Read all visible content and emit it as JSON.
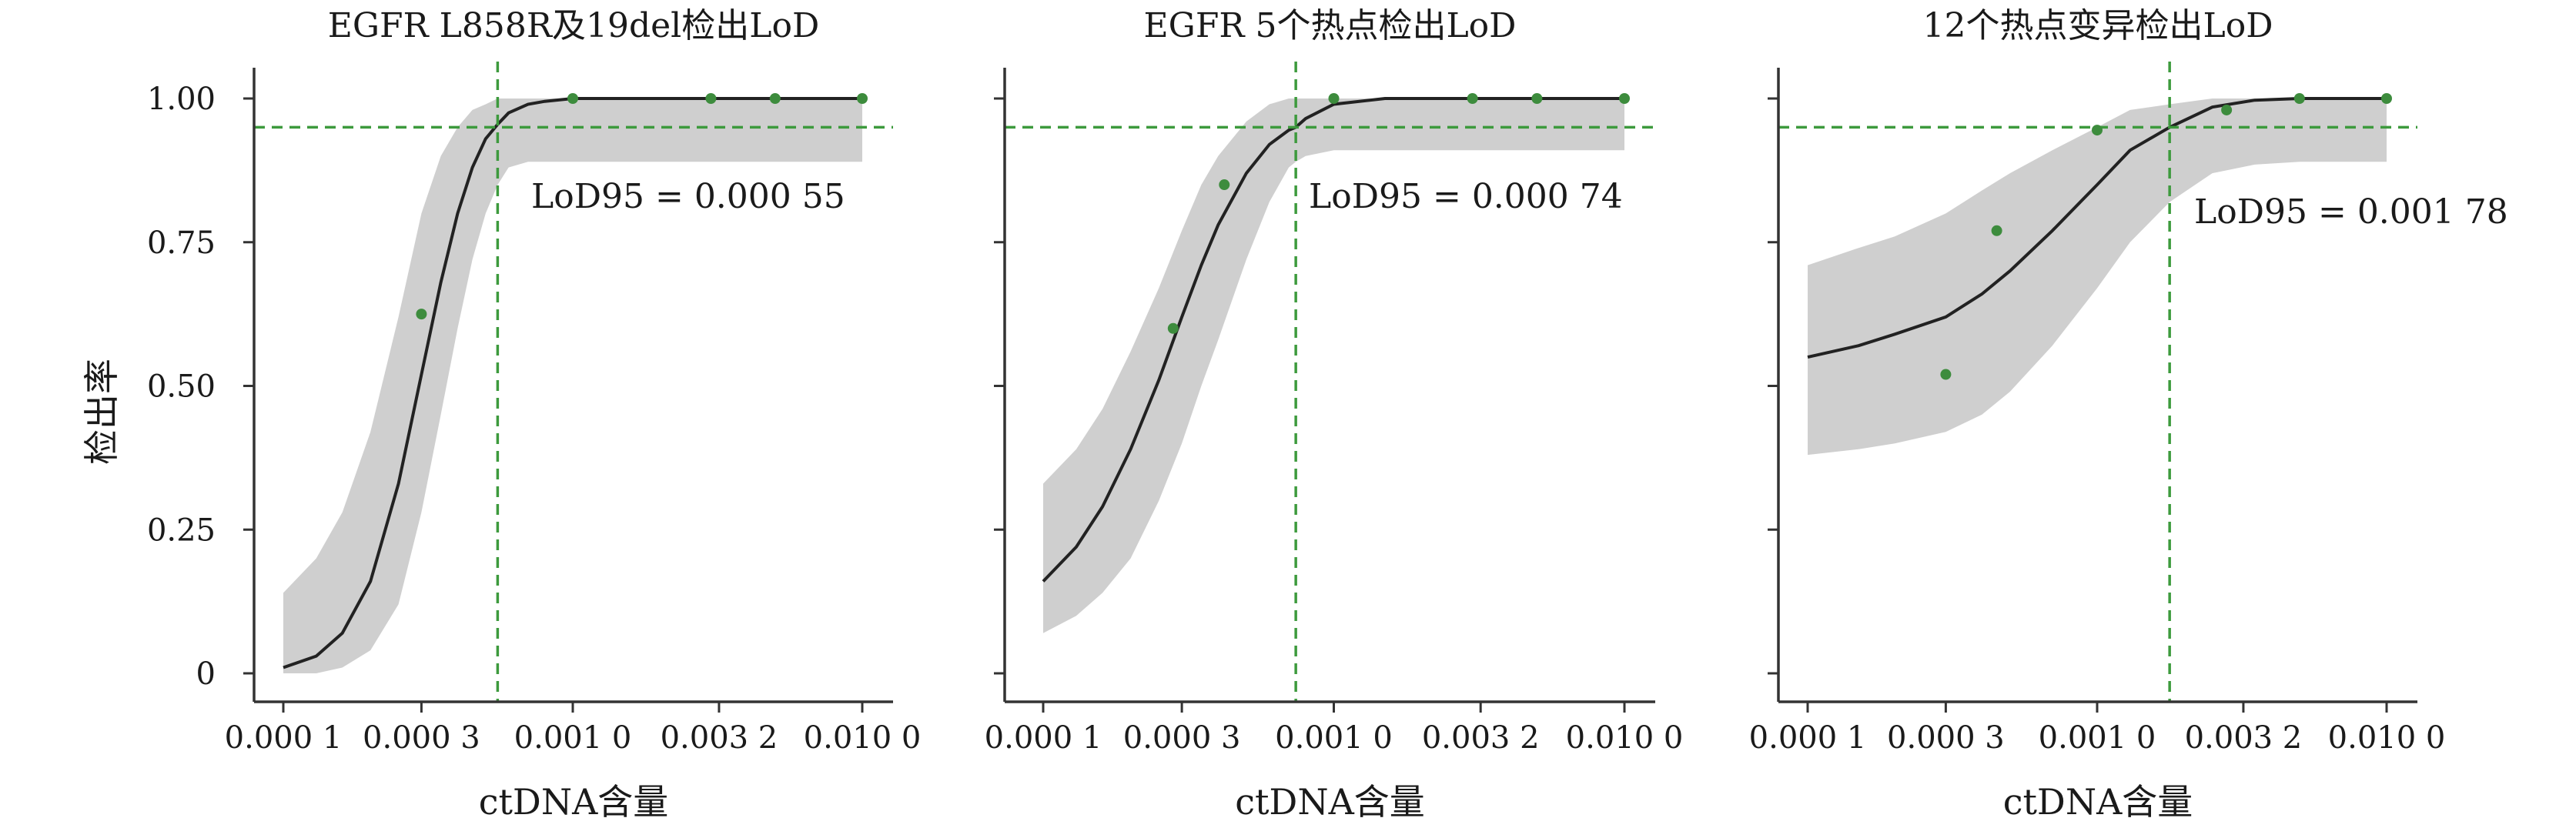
{
  "shared": {
    "ylabel": "检出率",
    "xlabel": "ctDNA含量",
    "x_ticks": [
      {
        "value": 0.0001,
        "label": "0.000 1"
      },
      {
        "value": 0.0003,
        "label": "0.000 3"
      },
      {
        "value": 0.001,
        "label": "0.001 0"
      },
      {
        "value": 0.0032,
        "label": "0.003 2"
      },
      {
        "value": 0.01,
        "label": "0.010 0"
      }
    ],
    "y_ticks": [
      {
        "value": 0,
        "label": "0"
      },
      {
        "value": 0.25,
        "label": "0.25"
      },
      {
        "value": 0.5,
        "label": "0.50"
      },
      {
        "value": 0.75,
        "label": "0.75"
      },
      {
        "value": 1.0,
        "label": "1.00"
      }
    ],
    "colors": {
      "point": "#3d8c3d",
      "reference": "#3d9a3d",
      "curve": "#222222",
      "band": "#cfcfcf",
      "axis": "#333333"
    }
  },
  "chart_data": [
    {
      "type": "line",
      "title": "EGFR L858R及19del检出LoD",
      "xlabel": "ctDNA含量",
      "ylabel": "检出率",
      "x_scale": "log",
      "xlim": [
        0.0001,
        0.01
      ],
      "ylim": [
        0,
        1.0
      ],
      "annotation": "LoD95 = 0.000 55",
      "lod95": 0.00055,
      "reference_y": 0.95,
      "points": {
        "x": [
          0.0003,
          0.001,
          0.003,
          0.005,
          0.01
        ],
        "y": [
          0.625,
          1.0,
          1.0,
          1.0,
          1.0
        ]
      },
      "fit": {
        "x": [
          0.0001,
          0.00013,
          0.00016,
          0.0002,
          0.00025,
          0.0003,
          0.00035,
          0.0004,
          0.00045,
          0.0005,
          0.00055,
          0.0006,
          0.0007,
          0.0008,
          0.001,
          0.002,
          0.005,
          0.01
        ],
        "y": [
          0.01,
          0.03,
          0.07,
          0.16,
          0.33,
          0.52,
          0.68,
          0.8,
          0.88,
          0.93,
          0.955,
          0.975,
          0.99,
          0.995,
          1.0,
          1.0,
          1.0,
          1.0
        ],
        "lower": [
          0.0,
          0.0,
          0.01,
          0.04,
          0.12,
          0.28,
          0.45,
          0.6,
          0.72,
          0.8,
          0.85,
          0.88,
          0.89,
          0.89,
          0.89,
          0.89,
          0.89,
          0.89
        ],
        "upper": [
          0.14,
          0.2,
          0.28,
          0.42,
          0.62,
          0.8,
          0.9,
          0.95,
          0.98,
          0.99,
          1.0,
          1.0,
          1.0,
          1.0,
          1.0,
          1.0,
          1.0,
          1.0
        ]
      }
    },
    {
      "type": "line",
      "title": "EGFR 5个热点检出LoD",
      "xlabel": "ctDNA含量",
      "ylabel": "检出率",
      "x_scale": "log",
      "xlim": [
        0.0001,
        0.01
      ],
      "ylim": [
        0,
        1.0
      ],
      "annotation": "LoD95 = 0.000 74",
      "lod95": 0.00074,
      "reference_y": 0.95,
      "points": {
        "x": [
          0.00028,
          0.00042,
          0.001,
          0.003,
          0.005,
          0.01
        ],
        "y": [
          0.6,
          0.85,
          1.0,
          1.0,
          1.0,
          1.0
        ]
      },
      "fit": {
        "x": [
          0.0001,
          0.00013,
          0.00016,
          0.0002,
          0.00025,
          0.0003,
          0.00035,
          0.0004,
          0.0005,
          0.0006,
          0.0007,
          0.00074,
          0.0008,
          0.001,
          0.0015,
          0.002,
          0.005,
          0.01
        ],
        "y": [
          0.16,
          0.22,
          0.29,
          0.39,
          0.51,
          0.62,
          0.71,
          0.78,
          0.87,
          0.92,
          0.945,
          0.95,
          0.965,
          0.99,
          1.0,
          1.0,
          1.0,
          1.0
        ],
        "lower": [
          0.07,
          0.1,
          0.14,
          0.2,
          0.3,
          0.4,
          0.5,
          0.58,
          0.72,
          0.82,
          0.88,
          0.89,
          0.9,
          0.91,
          0.91,
          0.91,
          0.91,
          0.91
        ],
        "upper": [
          0.33,
          0.39,
          0.46,
          0.56,
          0.67,
          0.77,
          0.85,
          0.9,
          0.96,
          0.99,
          1.0,
          1.0,
          1.0,
          1.0,
          1.0,
          1.0,
          1.0,
          1.0
        ]
      }
    },
    {
      "type": "line",
      "title": "12个热点变异检出LoD",
      "xlabel": "ctDNA含量",
      "ylabel": "检出率",
      "x_scale": "log",
      "xlim": [
        0.0001,
        0.01
      ],
      "ylim": [
        0,
        1.0
      ],
      "annotation": "LoD95 = 0.001 78",
      "lod95": 0.00178,
      "reference_y": 0.95,
      "points": {
        "x": [
          0.0003,
          0.00045,
          0.001,
          0.0028,
          0.005,
          0.01
        ],
        "y": [
          0.52,
          0.77,
          0.945,
          0.98,
          1.0,
          1.0
        ]
      },
      "fit": {
        "x": [
          0.0001,
          0.00015,
          0.0002,
          0.0003,
          0.0004,
          0.0005,
          0.0007,
          0.001,
          0.0013,
          0.00178,
          0.0025,
          0.0035,
          0.005,
          0.007,
          0.01
        ],
        "y": [
          0.55,
          0.57,
          0.59,
          0.62,
          0.66,
          0.7,
          0.77,
          0.85,
          0.91,
          0.95,
          0.985,
          0.997,
          1.0,
          1.0,
          1.0
        ],
        "lower": [
          0.38,
          0.39,
          0.4,
          0.42,
          0.45,
          0.49,
          0.57,
          0.67,
          0.75,
          0.82,
          0.87,
          0.885,
          0.89,
          0.89,
          0.89
        ],
        "upper": [
          0.71,
          0.74,
          0.76,
          0.8,
          0.84,
          0.87,
          0.91,
          0.95,
          0.98,
          0.99,
          1.0,
          1.0,
          1.0,
          1.0,
          1.0
        ]
      }
    }
  ]
}
